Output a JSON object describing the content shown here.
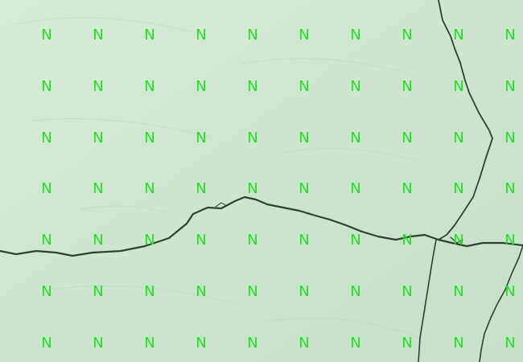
{
  "grid": {
    "letter": "N",
    "rows": 7,
    "cols": 10,
    "letter_color": "#20e020"
  },
  "background": {
    "surface": "cracked plaster wall",
    "color": "#cfe6d1",
    "crack_color": "#2f3f34"
  }
}
